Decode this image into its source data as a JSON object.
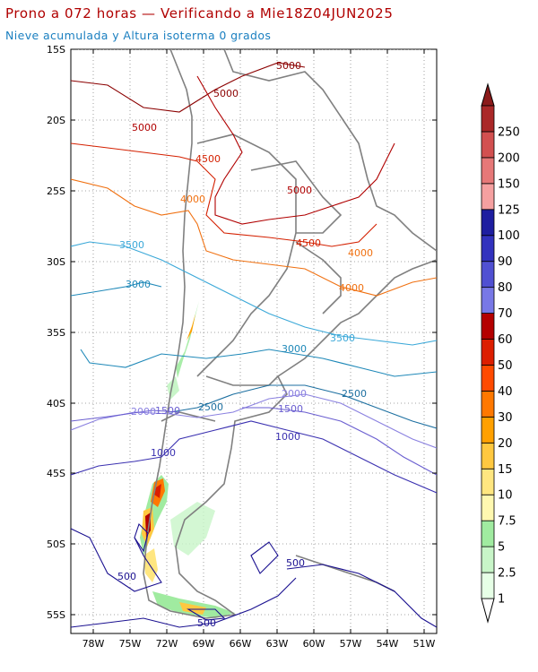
{
  "header": {
    "title": "Prono a 072 horas — Verificando a Mie18Z04JUN2025",
    "subtitle": "Nieve acumulada y Altura isoterma 0 grados"
  },
  "map": {
    "lat_labels": [
      "15S",
      "20S",
      "25S",
      "30S",
      "35S",
      "40S",
      "45S",
      "50S",
      "55S"
    ],
    "lon_labels": [
      "78W",
      "75W",
      "72W",
      "69W",
      "66W",
      "63W",
      "60W",
      "57W",
      "54W",
      "51W"
    ],
    "gridlines": true,
    "contour_labels": [
      {
        "text": "5000",
        "color": "#8b0000"
      },
      {
        "text": "5000",
        "color": "#8b0000"
      },
      {
        "text": "5000",
        "color": "#b00000"
      },
      {
        "text": "5000",
        "color": "#b00000"
      },
      {
        "text": "4500",
        "color": "#d42000"
      },
      {
        "text": "4500",
        "color": "#d42000"
      },
      {
        "text": "4000",
        "color": "#f07010"
      },
      {
        "text": "4000",
        "color": "#f07010"
      },
      {
        "text": "4000",
        "color": "#f07010"
      },
      {
        "text": "3500",
        "color": "#3aa8d8"
      },
      {
        "text": "3500",
        "color": "#3aa8d8"
      },
      {
        "text": "3000",
        "color": "#1e88b8"
      },
      {
        "text": "3000",
        "color": "#1e88b8"
      },
      {
        "text": "2500",
        "color": "#1c6fa0"
      },
      {
        "text": "2500",
        "color": "#1c6fa0"
      },
      {
        "text": "2000",
        "color": "#8a80e0"
      },
      {
        "text": "2000",
        "color": "#8a80e0"
      },
      {
        "text": "1500",
        "color": "#6a5ed0"
      },
      {
        "text": "1500",
        "color": "#6a5ed0"
      },
      {
        "text": "1000",
        "color": "#3a30b0"
      },
      {
        "text": "1000",
        "color": "#3a30b0"
      },
      {
        "text": "500",
        "color": "#1a1090"
      },
      {
        "text": "500",
        "color": "#1a1090"
      },
      {
        "text": "500",
        "color": "#1a1090"
      }
    ]
  },
  "colorbar": {
    "levels": [
      "1",
      "2.5",
      "5",
      "7.5",
      "10",
      "15",
      "20",
      "30",
      "40",
      "50",
      "60",
      "70",
      "80",
      "90",
      "100",
      "125",
      "150",
      "200",
      "250"
    ],
    "colors": [
      "#e6ffe6",
      "#c8f5c8",
      "#a0eba0",
      "#fff8b0",
      "#ffe680",
      "#ffc840",
      "#ffa000",
      "#ff7800",
      "#ff4a00",
      "#dc1e00",
      "#b40000",
      "#7878e6",
      "#5050d2",
      "#3232be",
      "#1e1ea0",
      "#f5a0a0",
      "#e67878",
      "#d25050",
      "#aa2828"
    ]
  },
  "colors": {
    "title": "#b00000",
    "subtitle": "#1a7fc0",
    "coast": "#808080"
  }
}
